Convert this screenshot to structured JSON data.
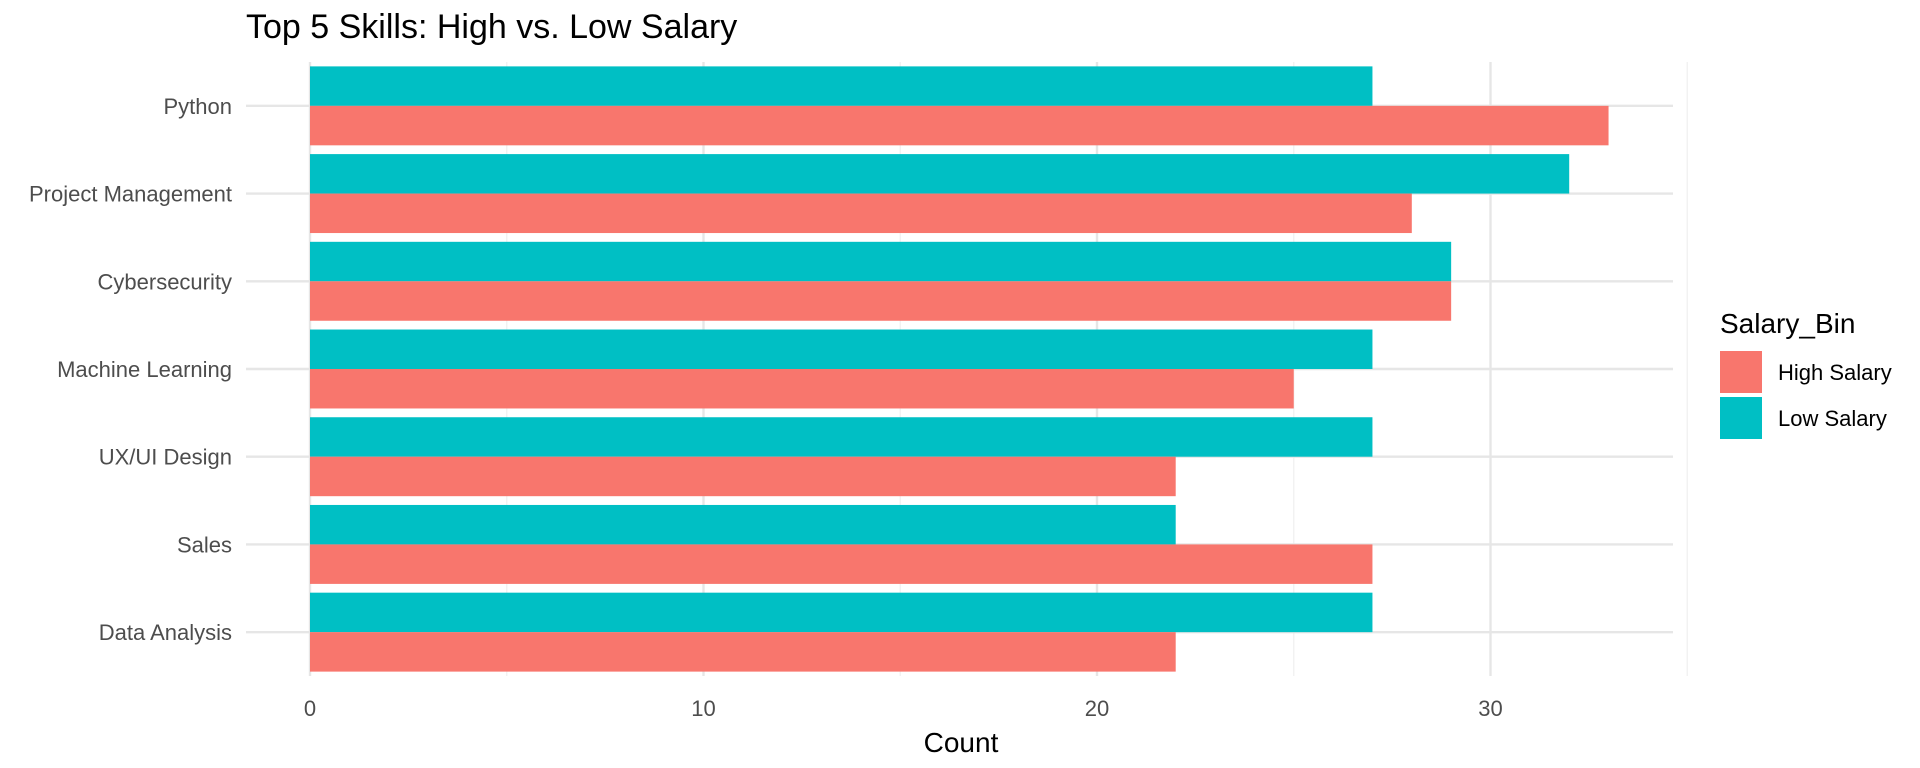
{
  "chart_data": {
    "type": "bar",
    "orientation": "horizontal",
    "title": "Top 5 Skills: High vs. Low Salary",
    "xlabel": "Count",
    "ylabel": "",
    "xlim": [
      0,
      35
    ],
    "x_ticks": [
      0,
      10,
      20,
      30
    ],
    "grid": true,
    "categories": [
      "Python",
      "Project Management",
      "Cybersecurity",
      "Machine Learning",
      "UX/UI Design",
      "Sales",
      "Data Analysis"
    ],
    "series": [
      {
        "name": "High Salary",
        "color": "#F8766D",
        "values": [
          33,
          28,
          29,
          25,
          22,
          27,
          22
        ]
      },
      {
        "name": "Low Salary",
        "color": "#00BFC4",
        "values": [
          27,
          32,
          29,
          27,
          27,
          22,
          27
        ]
      }
    ],
    "legend": {
      "title": "Salary_Bin",
      "position": "right"
    }
  }
}
